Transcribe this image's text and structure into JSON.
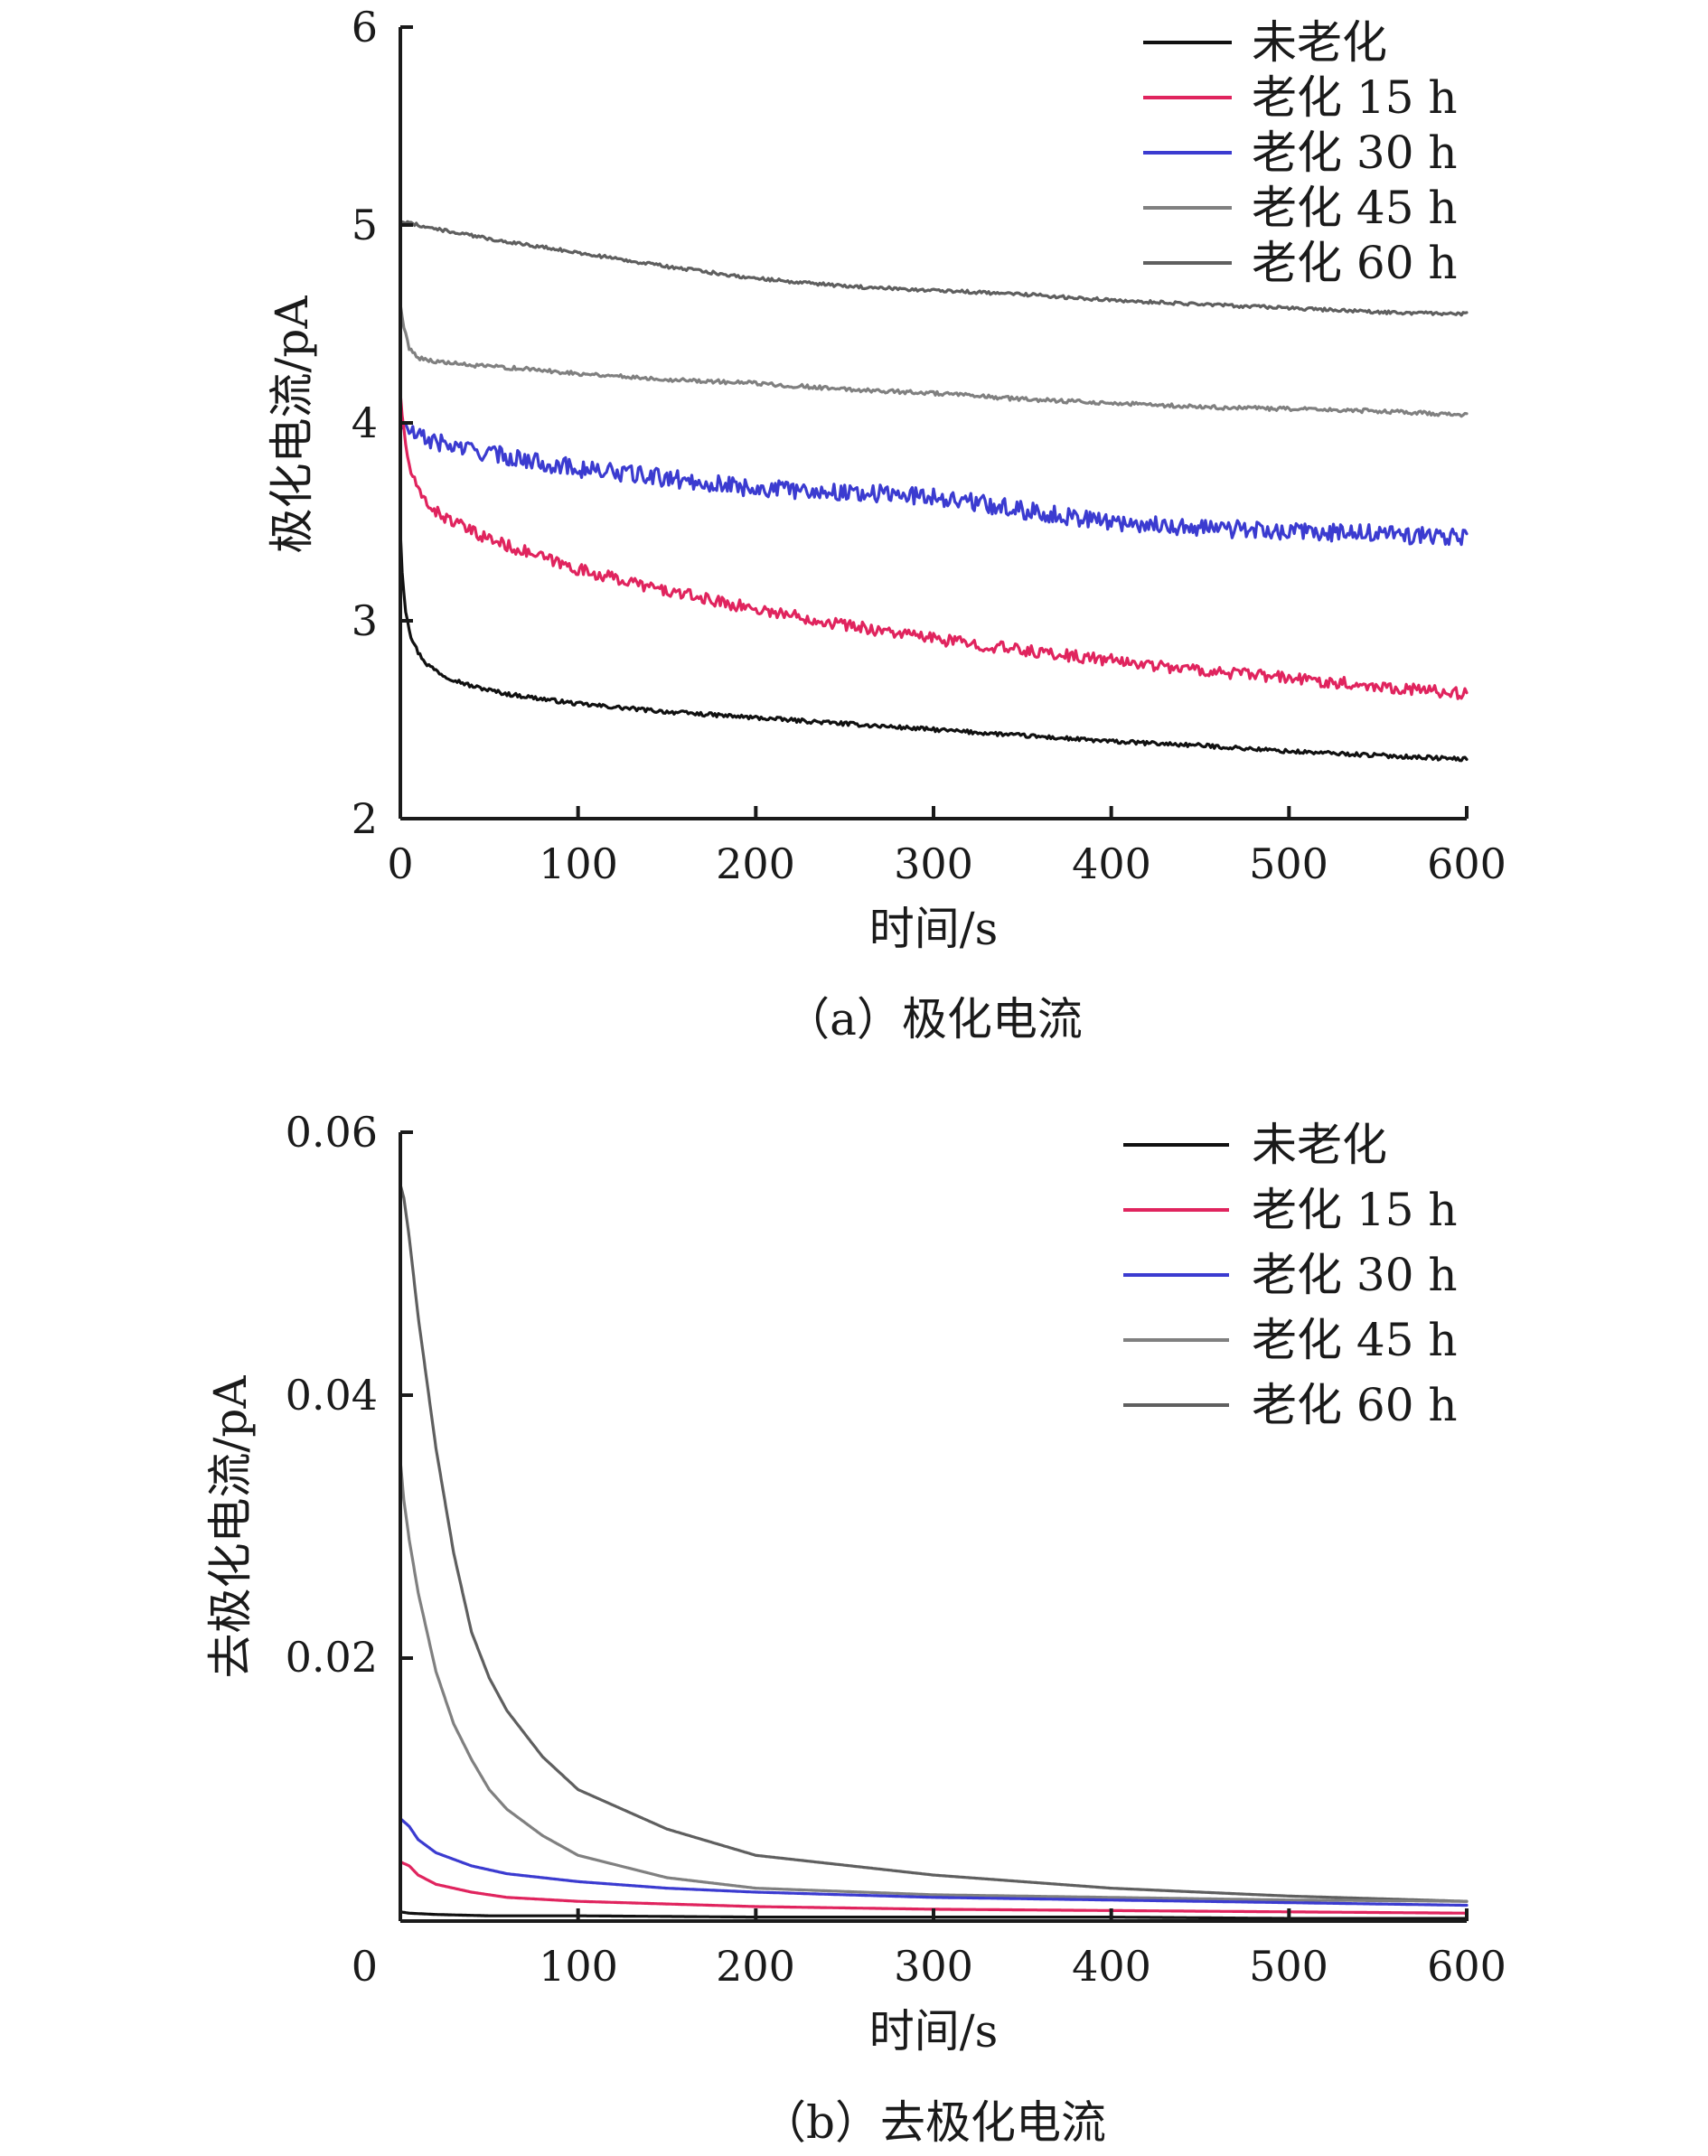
{
  "chart_data": [
    {
      "type": "line",
      "xlabel": "时间/s",
      "ylabel": "极化电流/pA",
      "caption": "（a）极化电流",
      "xlim": [
        0,
        600
      ],
      "ylim": [
        2,
        6
      ],
      "xticks": [
        "0",
        "100",
        "200",
        "300",
        "400",
        "500",
        "600"
      ],
      "yticks": [
        "2",
        "3",
        "4",
        "5",
        "6"
      ],
      "noise_amplitude": [
        0.01,
        0.03,
        0.045,
        0.01,
        0.008
      ],
      "legend_position": "top-right",
      "series": [
        {
          "name": "未老化",
          "color": "#111111",
          "x": [
            0,
            1,
            3,
            6,
            10,
            15,
            25,
            40,
            60,
            100,
            150,
            200,
            250,
            300,
            350,
            400,
            450,
            500,
            550,
            600
          ],
          "y": [
            3.45,
            3.25,
            3.05,
            2.92,
            2.84,
            2.78,
            2.72,
            2.67,
            2.63,
            2.58,
            2.54,
            2.51,
            2.48,
            2.45,
            2.42,
            2.39,
            2.37,
            2.34,
            2.32,
            2.3
          ]
        },
        {
          "name": "老化 15 h",
          "color": "#e0245e",
          "x": [
            0,
            2,
            5,
            10,
            20,
            40,
            60,
            100,
            150,
            200,
            250,
            300,
            350,
            400,
            450,
            500,
            550,
            600
          ],
          "y": [
            4.15,
            3.95,
            3.78,
            3.65,
            3.55,
            3.45,
            3.38,
            3.26,
            3.15,
            3.06,
            2.98,
            2.91,
            2.85,
            2.8,
            2.75,
            2.71,
            2.67,
            2.63
          ]
        },
        {
          "name": "老化 30 h",
          "color": "#3b3bd0",
          "x": [
            0,
            5,
            10,
            30,
            60,
            100,
            150,
            200,
            250,
            300,
            350,
            400,
            450,
            500,
            550,
            600
          ],
          "y": [
            4.0,
            3.96,
            3.93,
            3.88,
            3.83,
            3.77,
            3.72,
            3.67,
            3.65,
            3.63,
            3.56,
            3.5,
            3.47,
            3.45,
            3.44,
            3.42
          ]
        },
        {
          "name": "老化 45 h",
          "color": "#808080",
          "x": [
            0,
            2,
            5,
            10,
            20,
            40,
            60,
            100,
            150,
            200,
            250,
            300,
            350,
            400,
            450,
            500,
            550,
            600
          ],
          "y": [
            4.6,
            4.48,
            4.38,
            4.33,
            4.31,
            4.29,
            4.28,
            4.25,
            4.22,
            4.2,
            4.17,
            4.15,
            4.12,
            4.1,
            4.08,
            4.07,
            4.06,
            4.04
          ]
        },
        {
          "name": "老化 60 h",
          "color": "#5f5f5f",
          "x": [
            0,
            20,
            50,
            100,
            150,
            200,
            250,
            300,
            350,
            400,
            450,
            500,
            550,
            600
          ],
          "y": [
            5.02,
            4.98,
            4.93,
            4.86,
            4.79,
            4.73,
            4.69,
            4.67,
            4.65,
            4.62,
            4.6,
            4.58,
            4.56,
            4.55
          ]
        }
      ]
    },
    {
      "type": "line",
      "xlabel": "时间/s",
      "ylabel": "去极化电流/pA",
      "caption": "（b）去极化电流",
      "xlim": [
        0,
        600
      ],
      "ylim": [
        0,
        0.06
      ],
      "xticks": [
        "0",
        "100",
        "200",
        "300",
        "400",
        "500",
        "600"
      ],
      "yticks": [
        "0",
        "0.02",
        "0.04",
        "0.06"
      ],
      "legend_position": "top-right",
      "series": [
        {
          "name": "未老化",
          "color": "#111111",
          "x": [
            0,
            5,
            20,
            50,
            100,
            200,
            300,
            400,
            500,
            600
          ],
          "y": [
            0.0007,
            0.0006,
            0.0005,
            0.0004,
            0.0004,
            0.0003,
            0.0003,
            0.0003,
            0.0002,
            0.0002
          ]
        },
        {
          "name": "老化 15 h",
          "color": "#e0245e",
          "x": [
            0,
            5,
            10,
            20,
            40,
            60,
            100,
            150,
            200,
            300,
            400,
            500,
            600
          ],
          "y": [
            0.0045,
            0.0042,
            0.0035,
            0.0028,
            0.0022,
            0.0018,
            0.0015,
            0.0013,
            0.0011,
            0.0009,
            0.0008,
            0.0007,
            0.0006
          ]
        },
        {
          "name": "老化 30 h",
          "color": "#3b3bd0",
          "x": [
            0,
            5,
            10,
            20,
            40,
            60,
            100,
            150,
            200,
            300,
            400,
            500,
            600
          ],
          "y": [
            0.0078,
            0.0072,
            0.0062,
            0.0052,
            0.0042,
            0.0036,
            0.003,
            0.0025,
            0.0022,
            0.0018,
            0.0016,
            0.0014,
            0.0012
          ]
        },
        {
          "name": "老化 45 h",
          "color": "#808080",
          "x": [
            0,
            2,
            5,
            10,
            20,
            30,
            40,
            50,
            60,
            80,
            100,
            150,
            200,
            300,
            400,
            500,
            600
          ],
          "y": [
            0.035,
            0.032,
            0.029,
            0.025,
            0.019,
            0.015,
            0.0123,
            0.01,
            0.0085,
            0.0065,
            0.005,
            0.0033,
            0.0025,
            0.002,
            0.0018,
            0.0016,
            0.0015
          ]
        },
        {
          "name": "老化 60 h",
          "color": "#5f5f5f",
          "x": [
            0,
            2,
            5,
            10,
            15,
            20,
            30,
            40,
            50,
            60,
            80,
            100,
            150,
            200,
            300,
            400,
            500,
            600
          ],
          "y": [
            0.056,
            0.055,
            0.052,
            0.046,
            0.041,
            0.036,
            0.028,
            0.022,
            0.0185,
            0.016,
            0.0125,
            0.01,
            0.007,
            0.005,
            0.0035,
            0.0025,
            0.0019,
            0.0015
          ]
        }
      ]
    }
  ]
}
